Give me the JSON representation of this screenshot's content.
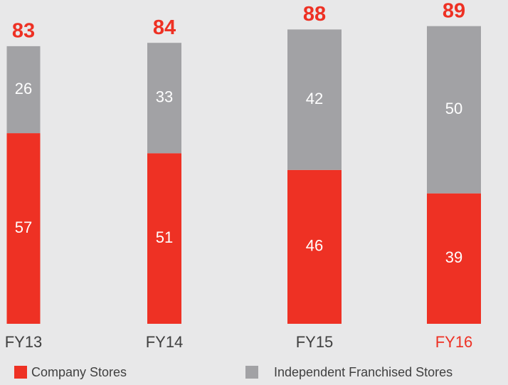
{
  "chart_data": {
    "type": "stacked_bar",
    "categories": [
      "FY13",
      "FY14",
      "FY15",
      "FY16"
    ],
    "category_colors": [
      "#404040",
      "#404040",
      "#404040",
      "#ee3124"
    ],
    "series": [
      {
        "name": "Company Stores",
        "color": "#ee3124",
        "values": [
          57,
          51,
          46,
          39
        ]
      },
      {
        "name": "Independent Franchised Stores",
        "color": "#a2a2a5",
        "values": [
          26,
          33,
          42,
          50
        ]
      }
    ],
    "totals": [
      83,
      84,
      88,
      89
    ],
    "totals_color": "#ee3124"
  }
}
